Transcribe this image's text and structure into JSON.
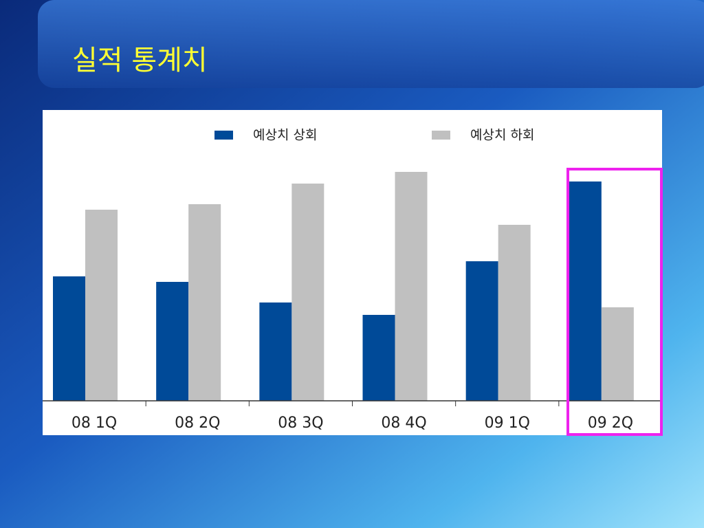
{
  "chart_data": {
    "type": "bar",
    "title": "실적 통계치",
    "categories": [
      "08 1Q",
      "08 2Q",
      "08 3Q",
      "08 4Q",
      "09 1Q",
      "09 2Q"
    ],
    "series": [
      {
        "name": "예상치 상회",
        "color": "#004a98",
        "values": [
          181,
          173,
          143,
          125,
          203,
          319
        ]
      },
      {
        "name": "예상치 하회",
        "color": "#c0c0c0",
        "values": [
          278,
          286,
          316,
          333,
          256,
          136
        ]
      }
    ],
    "legend": "top"
  }
}
